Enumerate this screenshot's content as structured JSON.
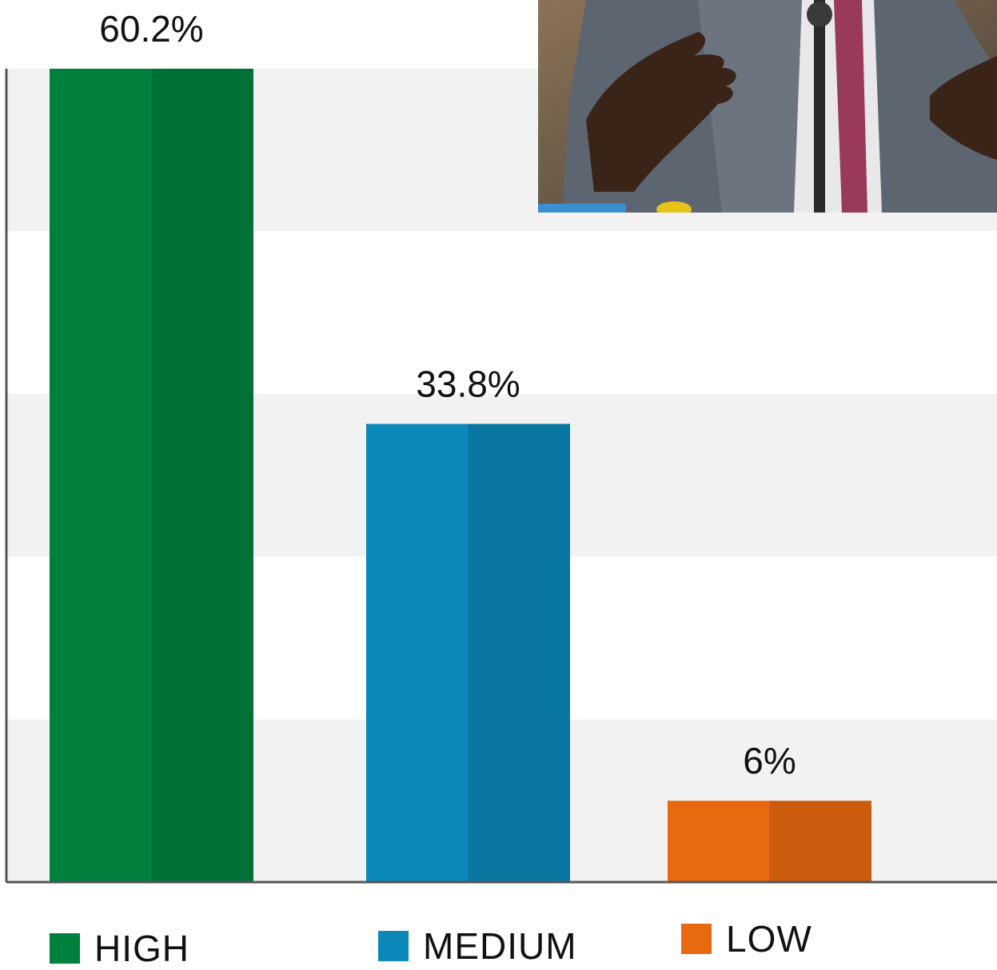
{
  "chart_data": {
    "type": "bar",
    "categories": [
      "HIGH",
      "MEDIUM",
      "LOW"
    ],
    "values": [
      60.2,
      33.8,
      6
    ],
    "data_labels": [
      "60.2%",
      "33.8%",
      "6%"
    ],
    "ylim": [
      0,
      60
    ],
    "grid": "alternating horizontal bands",
    "colors": [
      "#00803d",
      "#0b87b8",
      "#e8690f"
    ],
    "legend": {
      "position": "bottom",
      "items": [
        {
          "label": "HIGH",
          "color": "#00803d"
        },
        {
          "label": "MEDIUM",
          "color": "#0b87b8"
        },
        {
          "label": "LOW",
          "color": "#e8690f"
        }
      ]
    }
  },
  "photo": {
    "description_icon": "speaker-at-microphone-photo"
  }
}
